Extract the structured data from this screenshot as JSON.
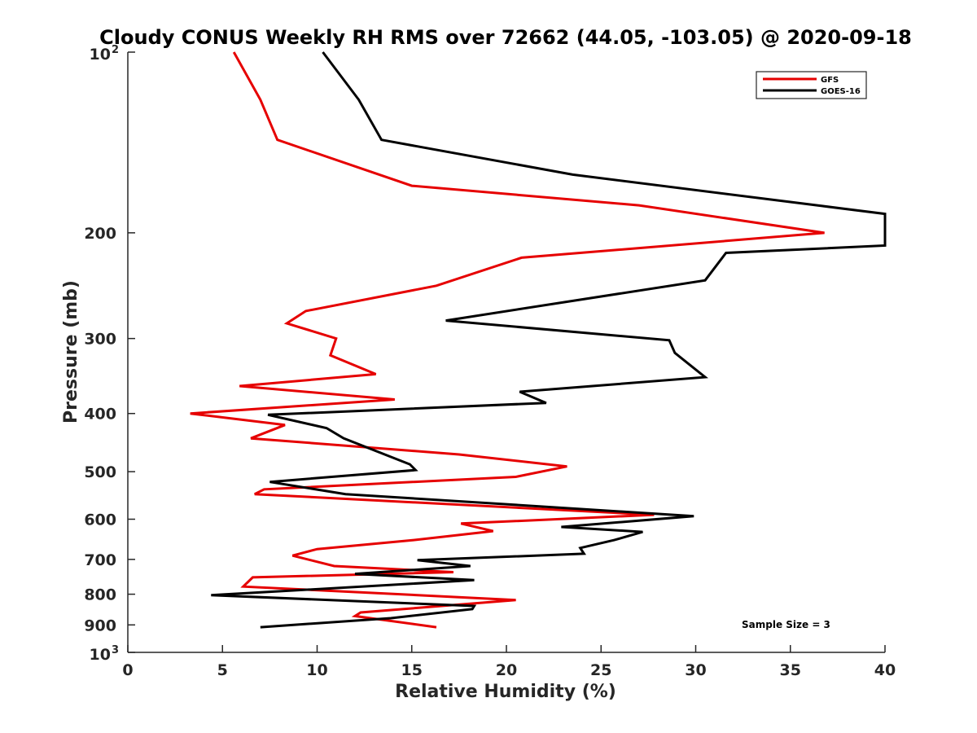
{
  "chart_data": {
    "type": "line",
    "title": "Cloudy CONUS Weekly RH RMS over 72662 (44.05, -103.05) @ 2020-09-18",
    "xlabel": "Relative Humidity (%)",
    "ylabel": "Pressure (mb)",
    "xlim": [
      0,
      40
    ],
    "ylim": [
      100,
      1000
    ],
    "y_scale": "log",
    "y_reversed": true,
    "grid": false,
    "legend_position": "top-right",
    "x_ticks": [
      0,
      5,
      10,
      15,
      20,
      25,
      30,
      35,
      40
    ],
    "x_tick_labels": [
      "0",
      "5",
      "10",
      "15",
      "20",
      "25",
      "30",
      "35",
      "40"
    ],
    "y_ticks": [
      100,
      200,
      300,
      400,
      500,
      600,
      700,
      800,
      900,
      1000
    ],
    "y_tick_labels": [
      {
        "base": "10",
        "exp": "2"
      },
      {
        "base": "200"
      },
      {
        "base": "300"
      },
      {
        "base": "400"
      },
      {
        "base": "500"
      },
      {
        "base": "600"
      },
      {
        "base": "700"
      },
      {
        "base": "800"
      },
      {
        "base": "900"
      },
      {
        "base": "10",
        "exp": "3"
      }
    ],
    "annotation": "Sample Size = 3",
    "series": [
      {
        "name": "GFS",
        "color": "#e60000",
        "points": [
          [
            5.6,
            100
          ],
          [
            7.0,
            120
          ],
          [
            7.9,
            140
          ],
          [
            15.0,
            167
          ],
          [
            27.0,
            180
          ],
          [
            36.8,
            200
          ],
          [
            20.8,
            220
          ],
          [
            16.3,
            245
          ],
          [
            9.4,
            270
          ],
          [
            8.4,
            283
          ],
          [
            11.0,
            300
          ],
          [
            10.7,
            320
          ],
          [
            13.1,
            344
          ],
          [
            5.9,
            360
          ],
          [
            14.1,
            379
          ],
          [
            3.3,
            400
          ],
          [
            8.3,
            418
          ],
          [
            6.5,
            440
          ],
          [
            17.5,
            468
          ],
          [
            23.2,
            490
          ],
          [
            20.5,
            510
          ],
          [
            7.2,
            535
          ],
          [
            6.7,
            545
          ],
          [
            27.8,
            590
          ],
          [
            17.6,
            610
          ],
          [
            19.3,
            628
          ],
          [
            15.1,
            650
          ],
          [
            10.0,
            673
          ],
          [
            8.7,
            690
          ],
          [
            10.9,
            718
          ],
          [
            17.2,
            735
          ],
          [
            6.6,
            750
          ],
          [
            6.1,
            777
          ],
          [
            20.5,
            818
          ],
          [
            12.3,
            858
          ],
          [
            12.0,
            870
          ],
          [
            16.3,
            908
          ]
        ]
      },
      {
        "name": "GOES-16",
        "color": "#000000",
        "points": [
          [
            10.3,
            100
          ],
          [
            12.2,
            120
          ],
          [
            13.4,
            140
          ],
          [
            23.5,
            160
          ],
          [
            40.0,
            186
          ],
          [
            40.0,
            210
          ],
          [
            31.6,
            216
          ],
          [
            30.5,
            240
          ],
          [
            16.8,
            280
          ],
          [
            28.6,
            302
          ],
          [
            28.9,
            317
          ],
          [
            30.5,
            348
          ],
          [
            20.7,
            368
          ],
          [
            22.1,
            384
          ],
          [
            7.4,
            402
          ],
          [
            10.5,
            423
          ],
          [
            11.4,
            440
          ],
          [
            14.9,
            486
          ],
          [
            15.2,
            497
          ],
          [
            7.5,
            520
          ],
          [
            11.5,
            545
          ],
          [
            29.9,
            593
          ],
          [
            22.9,
            618
          ],
          [
            27.2,
            630
          ],
          [
            25.7,
            650
          ],
          [
            23.9,
            670
          ],
          [
            24.1,
            685
          ],
          [
            15.3,
            702
          ],
          [
            18.1,
            718
          ],
          [
            12.0,
            740
          ],
          [
            18.3,
            758
          ],
          [
            4.4,
            803
          ],
          [
            18.3,
            837
          ],
          [
            18.2,
            847
          ],
          [
            13.9,
            877
          ],
          [
            7.0,
            908
          ]
        ]
      }
    ]
  }
}
